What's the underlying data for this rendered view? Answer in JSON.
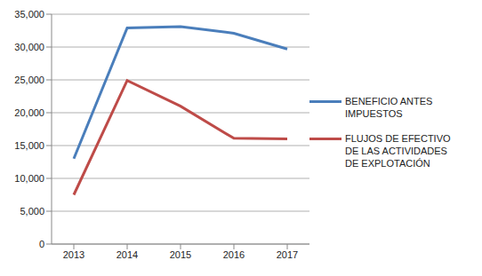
{
  "chart_data": {
    "type": "line",
    "categories": [
      "2013",
      "2014",
      "2015",
      "2016",
      "2017"
    ],
    "series": [
      {
        "name": "BENEFICIO ANTES IMPUESTOS",
        "color": "#4a7ebb",
        "values": [
          13000,
          32900,
          33100,
          32100,
          29700
        ]
      },
      {
        "name": "FLUJOS DE EFECTIVO DE LAS ACTIVIDADES DE EXPLOTACIÓN",
        "color": "#be4b48",
        "values": [
          7500,
          24900,
          21000,
          16100,
          16000
        ]
      }
    ],
    "ylim": [
      0,
      35000
    ],
    "yticks": [
      0,
      {
        "value": 5000,
        "label": "5,000"
      },
      {
        "value": 10000,
        "label": "10,000"
      },
      {
        "value": 15000,
        "label": "15,000"
      },
      {
        "value": 20000,
        "label": "20,000"
      },
      {
        "value": 25000,
        "label": "25,000"
      },
      {
        "value": 30000,
        "label": "30,000"
      },
      {
        "value": 35000,
        "label": "35,000"
      }
    ],
    "grid": true,
    "legend": "right"
  }
}
